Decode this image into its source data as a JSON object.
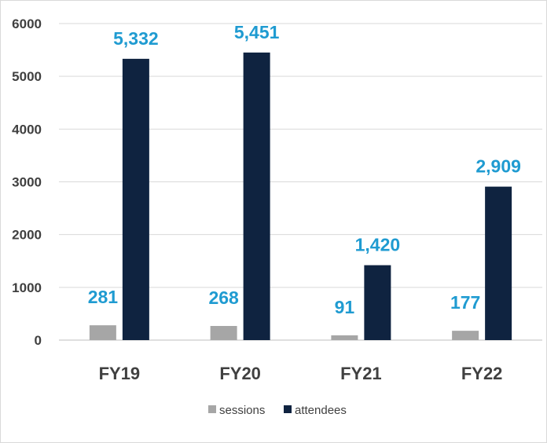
{
  "chart_data": {
    "type": "bar",
    "categories": [
      "FY19",
      "FY20",
      "FY21",
      "FY22"
    ],
    "series": [
      {
        "name": "sessions",
        "values": [
          281,
          268,
          91,
          177
        ],
        "labels": [
          "281",
          "268",
          "91",
          "177"
        ],
        "color": "#a6a6a6"
      },
      {
        "name": "attendees",
        "values": [
          5332,
          5451,
          1420,
          2909
        ],
        "labels": [
          "5,332",
          "5,451",
          "1,420",
          "2,909"
        ],
        "color": "#0f2340"
      }
    ],
    "ylim": [
      0,
      6000
    ],
    "yticks": [
      "0",
      "1000",
      "2000",
      "3000",
      "4000",
      "5000",
      "6000"
    ],
    "ytick_values": [
      0,
      1000,
      2000,
      3000,
      4000,
      5000,
      6000
    ],
    "grid": true,
    "legend_position": "bottom-center",
    "label_color": "#1f9bd1",
    "title": "",
    "xlabel": "",
    "ylabel": ""
  }
}
